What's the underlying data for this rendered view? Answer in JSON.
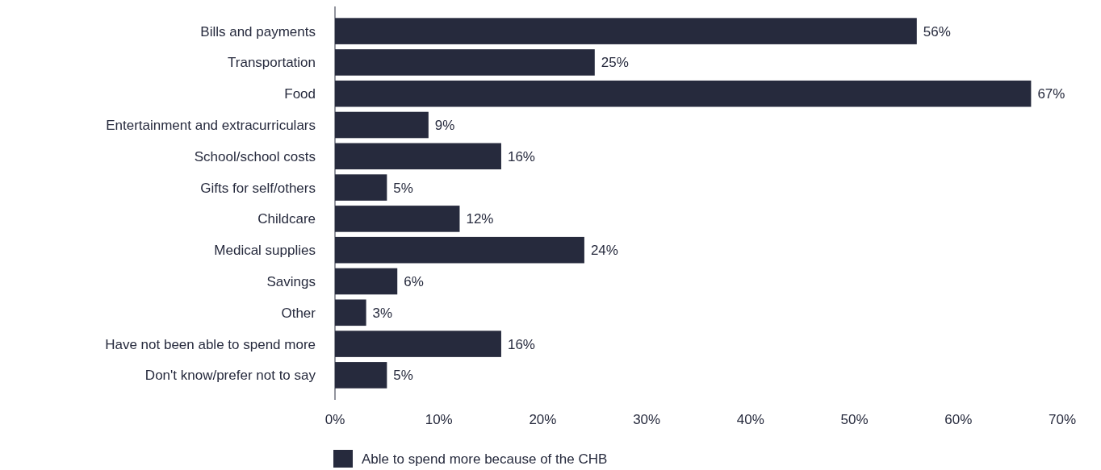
{
  "chart_data": {
    "type": "bar",
    "orientation": "horizontal",
    "categories": [
      "Bills and payments",
      "Transportation",
      "Food",
      "Entertainment and extracurriculars",
      "School/school costs",
      "Gifts for self/others",
      "Childcare",
      "Medical supplies",
      "Savings",
      "Other",
      "Have not been able to spend more",
      "Don't know/prefer not to say"
    ],
    "series": [
      {
        "name": "Able to spend more because of the CHB",
        "color": "#262a3d",
        "values": [
          56,
          25,
          67,
          9,
          16,
          5,
          12,
          24,
          6,
          3,
          16,
          5
        ],
        "value_labels": [
          "56%",
          "25%",
          "67%",
          "9%",
          "16%",
          "5%",
          "12%",
          "24%",
          "6%",
          "3%",
          "16%",
          "5%"
        ]
      }
    ],
    "xlim": [
      0,
      70
    ],
    "xticks": [
      {
        "value": 0,
        "label": "0%"
      },
      {
        "value": 10,
        "label": "10%"
      },
      {
        "value": 20,
        "label": "20%"
      },
      {
        "value": 30,
        "label": "30%"
      },
      {
        "value": 40,
        "label": "40%"
      },
      {
        "value": 50,
        "label": "50%"
      },
      {
        "value": 60,
        "label": "60%"
      },
      {
        "value": 70,
        "label": "70%"
      }
    ],
    "grid": false,
    "legend": "bottom"
  }
}
